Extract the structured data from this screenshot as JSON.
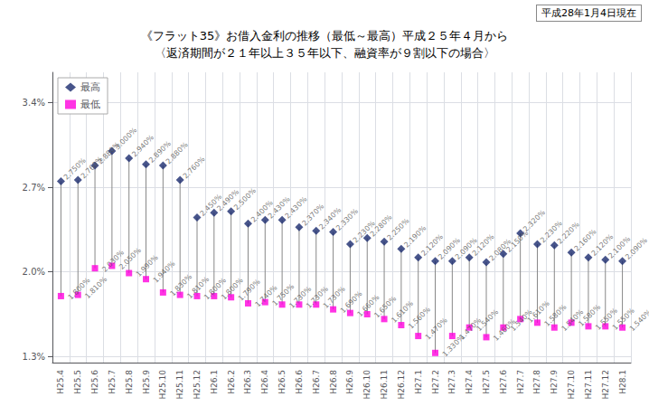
{
  "chart_data": {
    "type": "scatter",
    "title": "《フラット35》お借入金利の推移（最低～最高）平成２５年４月から",
    "subtitle": "〈返済期間が２１年以上３５年以下、融資率が９割以下の場合〉",
    "annotations": [
      "平成28年1月4日現在"
    ],
    "categories": [
      "H25.4",
      "H25.5",
      "H25.6",
      "H25.7",
      "H25.8",
      "H25.9",
      "H25.10",
      "H25.11",
      "H25.12",
      "H26.1",
      "H26.2",
      "H26.3",
      "H26.4",
      "H26.5",
      "H26.6",
      "H26.7",
      "H26.8",
      "H26.9",
      "H26.10",
      "H26.11",
      "H26.12",
      "H27.1",
      "H27.2",
      "H27.3",
      "H27.4",
      "H27.5",
      "H27.6",
      "H27.7",
      "H27.8",
      "H27.9",
      "H27.10",
      "H27.11",
      "H27.12",
      "H28.1"
    ],
    "series": [
      {
        "name": "最高",
        "color": "#1a2a6e",
        "marker": "diamond",
        "values": [
          2.75,
          2.76,
          2.88,
          3.0,
          2.94,
          2.89,
          2.88,
          2.76,
          2.45,
          2.49,
          2.5,
          2.4,
          2.43,
          2.43,
          2.37,
          2.34,
          2.33,
          2.23,
          2.28,
          2.25,
          2.19,
          2.12,
          2.09,
          2.09,
          2.12,
          2.08,
          2.15,
          2.32,
          2.23,
          2.22,
          2.16,
          2.12,
          2.1,
          2.09
        ],
        "value_labels": [
          "2.750%",
          "2.760%",
          "2.880%",
          "3.000%",
          "2.940%",
          "2.890%",
          "2.880%",
          "2.760%",
          "2.450%",
          "2.490%",
          "2.500%",
          "2.400%",
          "2.430%",
          "2.430%",
          "2.370%",
          "2.340%",
          "2.330%",
          "2.230%",
          "2.280%",
          "2.250%",
          "2.190%",
          "2.120%",
          "2.090%",
          "2.090%",
          "2.120%",
          "2.080%",
          "2.150%",
          "2.320%",
          "2.230%",
          "2.220%",
          "2.160%",
          "2.120%",
          "2.100%",
          "2.090%"
        ]
      },
      {
        "name": "最低",
        "color": "#ff00dd",
        "marker": "square",
        "values": [
          1.8,
          1.81,
          2.03,
          2.05,
          1.99,
          1.94,
          1.83,
          1.81,
          1.8,
          1.8,
          1.79,
          1.74,
          1.75,
          1.73,
          1.73,
          1.73,
          1.69,
          1.66,
          1.65,
          1.61,
          1.56,
          1.47,
          1.33,
          1.47,
          1.54,
          1.46,
          1.54,
          1.61,
          1.58,
          1.54,
          1.58,
          1.55,
          1.55,
          1.54
        ],
        "value_labels": [
          "1.800%",
          "1.810%",
          "2.030%",
          "2.050%",
          "1.990%",
          "1.940%",
          "1.830%",
          "1.810%",
          "1.800%",
          "1.800%",
          "1.790%",
          "1.740%",
          "1.750%",
          "1.730%",
          "1.730%",
          "1.730%",
          "1.690%",
          "1.660%",
          "1.650%",
          "1.610%",
          "1.560%",
          "1.470%",
          "1.330%",
          "1.470%",
          "1.540%",
          "1.460%",
          "1.540%",
          "1.610%",
          "1.580%",
          "1.540%",
          "1.580%",
          "1.550%",
          "1.550%",
          "1.540%"
        ]
      }
    ],
    "ylim": [
      1.25,
      3.65
    ],
    "yticks": [
      {
        "value": 1.3,
        "label": "1.3%"
      },
      {
        "value": 2.0,
        "label": "2.0%"
      },
      {
        "value": 2.7,
        "label": "2.7%"
      },
      {
        "value": 3.4,
        "label": "3.4%"
      }
    ],
    "grid": true,
    "legend": "upper left",
    "data_labels": true
  }
}
